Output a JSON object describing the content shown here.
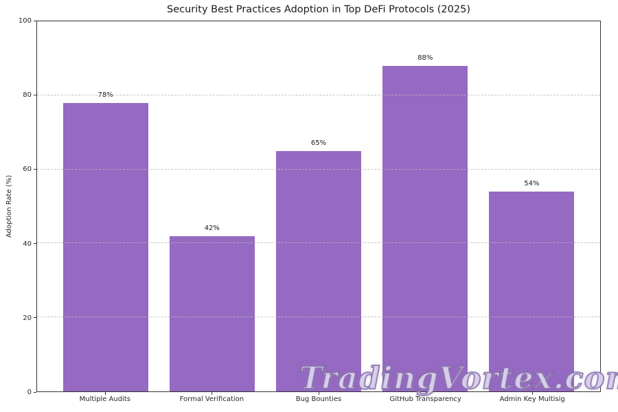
{
  "chart_data": {
    "type": "bar",
    "title": "Security Best Practices Adoption in Top DeFi Protocols (2025)",
    "xlabel": "",
    "ylabel": "Adoption Rate (%)",
    "categories": [
      "Multiple Audits",
      "Formal Verification",
      "Bug Bounties",
      "GitHub Transparency",
      "Admin Key Multisig"
    ],
    "values": [
      78,
      42,
      65,
      88,
      54
    ],
    "value_labels": [
      "78%",
      "42%",
      "65%",
      "88%",
      "54%"
    ],
    "ylim": [
      0,
      100
    ],
    "yticks": [
      0,
      20,
      40,
      60,
      80,
      100
    ],
    "grid": "horizontal-dashed",
    "legend": "none",
    "bar_color": "#9669c3"
  },
  "watermark": {
    "text": "TradingVortex.com"
  },
  "colors": {
    "bar": "#9669c3",
    "grid": "#b9b9b9",
    "axis": "#333333",
    "text": "#262626",
    "background": "#ffffff",
    "watermark_fill": "#cfc1e7",
    "watermark_outline": "#6c5494"
  }
}
